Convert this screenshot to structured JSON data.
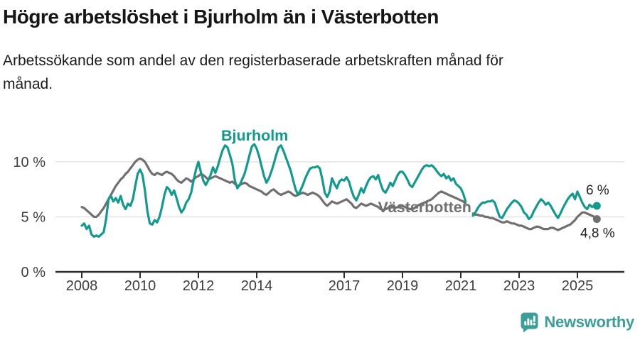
{
  "header": {
    "title": "Högre arbetslöshet i Bjurholm än i Västerbotten",
    "subtitle": "Arbetssökande som andel av den registerbaserade arbetskraften månad för\nmånad."
  },
  "footer": {
    "brand": "Newsworthy",
    "logo_icon": "newsworthy-bubble-barchart-icon"
  },
  "colors": {
    "bjurholm": "#129a8d",
    "vasterbotten": "#716f70",
    "gridline": "#e3e3e3",
    "axis": "#2e2e2e",
    "tick_label": "#3d3d3d",
    "end_label": "#222222",
    "brand_teal": "#3d9e99",
    "title_text": "#161616"
  },
  "chart_data": {
    "type": "line",
    "title": "Högre arbetslöshet i Bjurholm än i Västerbotten",
    "xlabel": "",
    "ylabel": "",
    "x_start_year": 2008,
    "points_per_year": 12,
    "x_end": "2025-09",
    "grid": "horizontal",
    "legend_position": "inline-labels",
    "note": "null values mark the statistics-revision gap April–May 2021",
    "ylim": [
      0,
      12.8
    ],
    "yticks": [
      {
        "value": 0,
        "label": "0 %"
      },
      {
        "value": 5,
        "label": "5 %"
      },
      {
        "value": 10,
        "label": "10 %"
      }
    ],
    "xticks": [
      {
        "year": 2008,
        "label": "2008"
      },
      {
        "year": 2010,
        "label": "2010"
      },
      {
        "year": 2012,
        "label": "2012"
      },
      {
        "year": 2014,
        "label": "2014"
      },
      {
        "year": 2017,
        "label": "2017"
      },
      {
        "year": 2019,
        "label": "2019"
      },
      {
        "year": 2021,
        "label": "2021"
      },
      {
        "year": 2023,
        "label": "2023"
      },
      {
        "year": 2025,
        "label": "2025"
      }
    ],
    "series": [
      {
        "name": "Bjurholm",
        "color": "#129a8d",
        "end_label": "6 %",
        "end_label_side": "above",
        "label_anchor": {
          "year": 2013.93,
          "value": 11.95
        },
        "values": [
          4.2,
          4.4,
          3.9,
          4.2,
          3.4,
          3.2,
          3.3,
          3.2,
          3.4,
          3.6,
          4.8,
          6.6,
          6.9,
          6.4,
          6.7,
          6.3,
          6.9,
          6.1,
          5.7,
          6.2,
          6.0,
          6.6,
          7.8,
          8.9,
          9.3,
          8.8,
          7.4,
          5.5,
          4.4,
          4.3,
          4.7,
          4.5,
          5.0,
          5.9,
          7.0,
          7.7,
          7.5,
          7.0,
          7.4,
          6.7,
          5.9,
          5.4,
          5.7,
          6.3,
          6.6,
          7.2,
          8.3,
          9.3,
          10.0,
          9.1,
          8.3,
          7.9,
          8.3,
          8.8,
          9.5,
          9.0,
          9.6,
          10.4,
          11.1,
          11.5,
          11.3,
          10.6,
          9.8,
          8.3,
          7.6,
          7.9,
          8.4,
          8.9,
          9.7,
          10.6,
          11.4,
          11.6,
          11.2,
          10.5,
          9.6,
          8.7,
          8.1,
          8.5,
          9.1,
          9.8,
          10.6,
          11.3,
          11.5,
          11.0,
          10.4,
          9.8,
          9.2,
          8.3,
          7.5,
          7.0,
          7.4,
          7.9,
          8.5,
          9.0,
          9.4,
          9.5,
          9.5,
          9.6,
          9.4,
          8.4,
          7.2,
          6.8,
          7.3,
          8.5,
          8.0,
          7.6,
          8.2,
          8.4,
          8.3,
          8.6,
          8.2,
          7.4,
          6.8,
          6.5,
          7.0,
          7.6,
          7.2,
          7.8,
          8.3,
          8.6,
          8.7,
          8.4,
          8.8,
          8.0,
          7.4,
          7.2,
          7.6,
          8.1,
          7.8,
          8.3,
          8.8,
          9.1,
          9.1,
          8.8,
          8.4,
          7.9,
          7.7,
          8.1,
          8.5,
          8.9,
          9.3,
          9.6,
          9.7,
          9.6,
          9.7,
          9.5,
          9.2,
          8.9,
          8.7,
          8.9,
          8.5,
          8.7,
          8.3,
          8.5,
          8.0,
          7.8,
          7.6,
          7.1,
          6.4,
          null,
          null,
          5.1,
          5.4,
          5.8,
          6.1,
          6.3,
          6.3,
          6.4,
          6.4,
          6.5,
          6.3,
          5.6,
          5.0,
          4.9,
          5.3,
          5.7,
          6.0,
          6.3,
          6.5,
          6.4,
          6.2,
          5.9,
          5.4,
          5.2,
          4.8,
          5.0,
          5.5,
          5.9,
          6.3,
          6.6,
          6.4,
          6.1,
          6.3,
          6.0,
          5.6,
          5.2,
          4.9,
          5.3,
          5.8,
          6.2,
          6.6,
          6.9,
          7.1,
          6.6,
          7.3,
          6.8,
          6.3,
          5.9,
          5.7,
          6.1,
          5.9,
          6.0,
          6.0
        ]
      },
      {
        "name": "Västerbotten",
        "color": "#716f70",
        "end_label": "4,8 %",
        "end_label_side": "below",
        "label_anchor": {
          "year": 2019.76,
          "value": 5.42
        },
        "values": [
          5.9,
          5.8,
          5.6,
          5.4,
          5.2,
          5.0,
          5.0,
          5.2,
          5.5,
          5.8,
          6.2,
          6.6,
          7.0,
          7.4,
          7.8,
          8.1,
          8.4,
          8.6,
          8.9,
          9.1,
          9.4,
          9.7,
          10.0,
          10.2,
          10.3,
          10.2,
          10.0,
          9.6,
          9.2,
          8.9,
          8.8,
          9.0,
          8.9,
          8.8,
          9.0,
          9.1,
          9.0,
          8.9,
          8.7,
          8.4,
          8.2,
          8.1,
          8.3,
          8.5,
          8.4,
          8.2,
          8.4,
          8.6,
          8.7,
          8.9,
          8.8,
          8.6,
          8.4,
          8.5,
          8.6,
          8.7,
          8.6,
          8.5,
          8.4,
          8.3,
          8.2,
          8.1,
          8.2,
          8.0,
          7.8,
          7.9,
          8.0,
          8.1,
          8.0,
          7.8,
          7.7,
          7.6,
          7.5,
          7.4,
          7.3,
          7.1,
          7.0,
          7.2,
          7.4,
          7.5,
          7.3,
          7.1,
          7.0,
          7.1,
          7.2,
          7.3,
          7.2,
          7.0,
          6.9,
          7.0,
          7.1,
          7.2,
          7.1,
          7.0,
          7.1,
          7.2,
          7.1,
          7.0,
          6.8,
          6.5,
          6.2,
          6.0,
          6.2,
          6.4,
          6.3,
          6.2,
          6.3,
          6.4,
          6.5,
          6.6,
          6.4,
          6.2,
          5.9,
          5.8,
          6.0,
          6.2,
          6.1,
          6.0,
          6.1,
          6.2,
          6.1,
          6.0,
          5.9,
          5.7,
          5.6,
          5.7,
          5.8,
          6.0,
          5.9,
          5.8,
          5.9,
          6.0,
          6.0,
          5.9,
          5.8,
          5.7,
          5.7,
          5.8,
          6.0,
          6.1,
          6.2,
          6.3,
          6.4,
          6.5,
          6.6,
          6.8,
          7.0,
          7.2,
          7.3,
          7.2,
          7.1,
          7.0,
          6.9,
          6.8,
          6.7,
          6.6,
          6.5,
          6.4,
          6.2,
          null,
          null,
          5.3,
          5.2,
          5.2,
          5.1,
          5.1,
          5.0,
          5.0,
          4.9,
          4.9,
          4.8,
          4.7,
          4.6,
          4.5,
          4.5,
          4.6,
          4.5,
          4.4,
          4.4,
          4.3,
          4.2,
          4.2,
          4.1,
          4.0,
          3.9,
          3.9,
          4.0,
          4.1,
          4.1,
          4.0,
          3.9,
          3.9,
          3.9,
          4.0,
          4.0,
          3.9,
          3.8,
          3.9,
          4.0,
          4.1,
          4.2,
          4.3,
          4.5,
          4.7,
          5.0,
          5.2,
          5.4,
          5.4,
          5.3,
          5.2,
          5.1,
          5.0,
          4.8
        ]
      }
    ]
  }
}
